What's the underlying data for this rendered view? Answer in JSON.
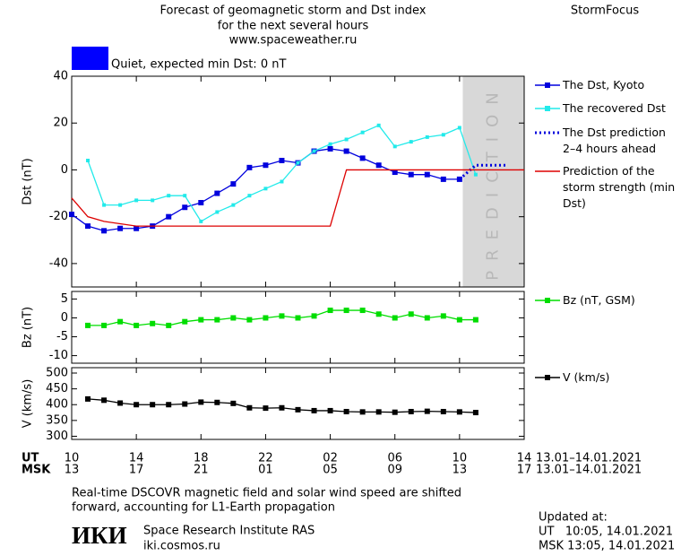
{
  "header": {
    "title": "Forecast of geomagnetic storm and Dst index",
    "subtitle": "for the next several hours",
    "url": "www.spaceweather.ru",
    "brand": "StormFocus"
  },
  "storm_level": {
    "color": "#0000ff",
    "label": "Quiet, expected min Dst: 0 nT"
  },
  "chart_data": [
    {
      "type": "line",
      "y_label": "Dst (nT)",
      "xlim": [
        0,
        28
      ],
      "ylim": [
        -50,
        40
      ],
      "yticks": [
        40,
        20,
        0,
        -20,
        -40
      ],
      "prediction_start": 24.2,
      "prediction_label": "PREDICTION",
      "prediction_color": "#d8d8d8",
      "series": [
        {
          "name": "The Dst, Kyoto",
          "color": "#0000dd",
          "marker": "square",
          "line_style": "solid",
          "x": [
            0,
            1,
            2,
            3,
            4,
            5,
            6,
            7,
            8,
            9,
            10,
            11,
            12,
            13,
            14,
            15,
            16,
            17,
            18,
            19,
            20,
            21,
            22,
            23,
            24
          ],
          "values": [
            -19,
            -24,
            -26,
            -25,
            -25,
            -24,
            -20,
            -16,
            -14,
            -10,
            -6,
            1,
            2,
            4,
            3,
            8,
            9,
            8,
            5,
            2,
            -1,
            -2,
            -2,
            -4,
            -4
          ]
        },
        {
          "name": "The recovered Dst",
          "color": "#22eaea",
          "marker": "small-square",
          "line_style": "solid",
          "x": [
            1,
            2,
            3,
            4,
            5,
            6,
            7,
            8,
            9,
            10,
            11,
            12,
            13,
            14,
            15,
            16,
            17,
            18,
            19,
            20,
            21,
            22,
            23,
            24,
            25
          ],
          "values": [
            4,
            -15,
            -15,
            -13,
            -13,
            -11,
            -11,
            -22,
            -18,
            -15,
            -11,
            -8,
            -5,
            3,
            8,
            11,
            13,
            16,
            19,
            10,
            12,
            14,
            15,
            18,
            -2
          ]
        },
        {
          "name": "The Dst prediction 2–4 hours ahead",
          "color": "#0000dd",
          "marker": "none",
          "line_style": "dotted",
          "x": [
            24,
            25,
            27
          ],
          "values": [
            -4,
            2,
            2
          ]
        },
        {
          "name": "Prediction of the storm strength (min Dst)",
          "color": "#dd0000",
          "marker": "none",
          "line_style": "solid",
          "x": [
            0,
            1,
            2,
            3,
            4,
            16,
            17,
            28
          ],
          "values": [
            -12,
            -20,
            -22,
            -23,
            -24,
            -24,
            0,
            0
          ]
        }
      ]
    },
    {
      "type": "line",
      "y_label": "Bz (nT)",
      "xlim": [
        0,
        28
      ],
      "ylim": [
        -12,
        7
      ],
      "yticks": [
        5,
        0,
        -5,
        -10
      ],
      "series": [
        {
          "name": "Bz (nT, GSM)",
          "color": "#00dd00",
          "marker": "square",
          "line_style": "solid",
          "x": [
            1,
            2,
            3,
            4,
            5,
            6,
            7,
            8,
            9,
            10,
            11,
            12,
            13,
            14,
            15,
            16,
            17,
            18,
            19,
            20,
            21,
            22,
            23,
            24,
            25
          ],
          "values": [
            -2,
            -2,
            -1,
            -2,
            -1.5,
            -2,
            -1,
            -0.5,
            -0.5,
            0,
            -0.5,
            0,
            0.5,
            0,
            0.5,
            2,
            2,
            2,
            1,
            0,
            1,
            0,
            0.5,
            -0.5,
            -0.5
          ]
        }
      ]
    },
    {
      "type": "line",
      "y_label": "V (km/s)",
      "xlim": [
        0,
        28
      ],
      "ylim": [
        290,
        517
      ],
      "yticks": [
        500,
        450,
        400,
        350,
        300
      ],
      "x_label": "UT",
      "x2_label": "MSK",
      "date_range": "13.01–14.01.2021",
      "xticks": [
        {
          "value": 0,
          "label": "10"
        },
        {
          "value": 4,
          "label": "14"
        },
        {
          "value": 8,
          "label": "18"
        },
        {
          "value": 12,
          "label": "22"
        },
        {
          "value": 16,
          "label": "02"
        },
        {
          "value": 20,
          "label": "06"
        },
        {
          "value": 24,
          "label": "10"
        },
        {
          "value": 28,
          "label": "14"
        }
      ],
      "x2ticks": [
        {
          "value": 0,
          "label": "13"
        },
        {
          "value": 4,
          "label": "17"
        },
        {
          "value": 8,
          "label": "21"
        },
        {
          "value": 12,
          "label": "01"
        },
        {
          "value": 16,
          "label": "05"
        },
        {
          "value": 20,
          "label": "09"
        },
        {
          "value": 24,
          "label": "13"
        },
        {
          "value": 28,
          "label": "17"
        }
      ],
      "series": [
        {
          "name": "V (km/s)",
          "color": "#000000",
          "marker": "square",
          "line_style": "solid",
          "x": [
            1,
            2,
            3,
            4,
            5,
            6,
            7,
            8,
            9,
            10,
            11,
            12,
            13,
            14,
            15,
            16,
            17,
            18,
            19,
            20,
            21,
            22,
            23,
            24,
            25
          ],
          "values": [
            418,
            414,
            405,
            400,
            400,
            400,
            402,
            408,
            407,
            404,
            390,
            389,
            390,
            384,
            381,
            381,
            378,
            377,
            377,
            376,
            378,
            379,
            378,
            377,
            375
          ]
        }
      ]
    }
  ],
  "footer": {
    "note": [
      "Real-time DSCOVR magnetic field and solar wind speed are shifted",
      "forward, accounting for L1-Earth propagation"
    ],
    "logo": "ИКИ",
    "institute": "Space Research Institute RAS",
    "site": "iki.cosmos.ru",
    "updated": [
      "Updated at:",
      "UT   10:05, 14.01.2021",
      "MSK 13:05, 14.01.2021"
    ]
  }
}
